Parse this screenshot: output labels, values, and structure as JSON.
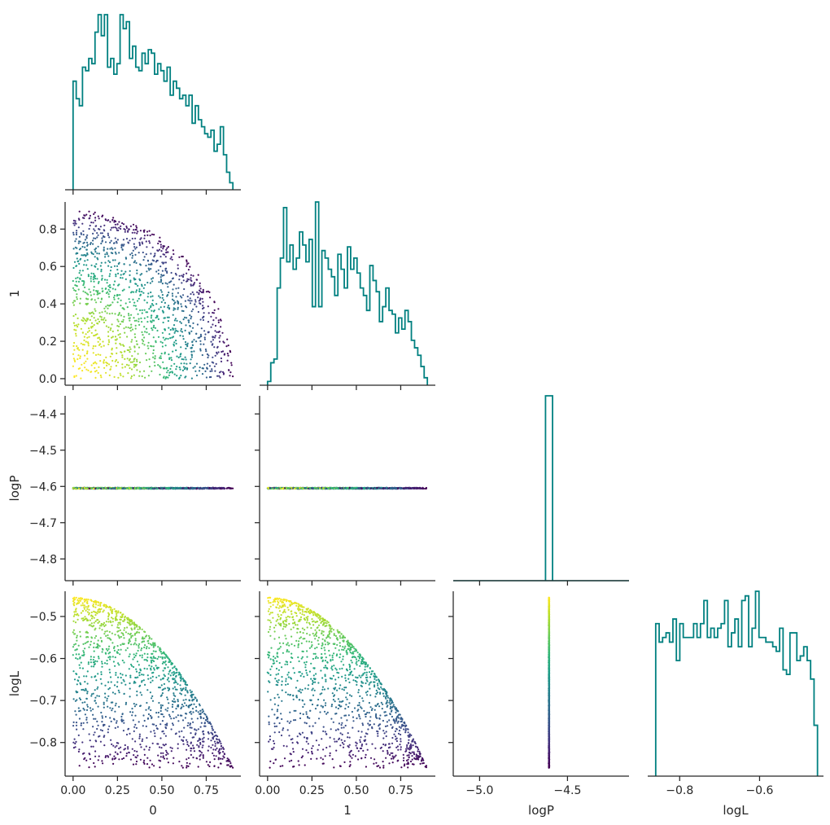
{
  "chart_data": {
    "type": "pairplot",
    "corner": true,
    "variables": [
      "0",
      "1",
      "logP",
      "logL"
    ],
    "colormap": "viridis",
    "color_by": "logL",
    "hist_color": "#008080",
    "axis_ranges": {
      "0": [
        -0.045,
        0.945
      ],
      "1": [
        -0.045,
        0.945
      ],
      "logP": [
        -5.15,
        -4.15
      ],
      "logL": [
        -0.88,
        -0.44
      ]
    },
    "y_ranges": {
      "1": [
        -0.035,
        0.945
      ],
      "logP": [
        -4.86,
        -4.35
      ],
      "logL": [
        -0.88,
        -0.44
      ]
    },
    "ticks": {
      "0": [
        0.0,
        0.25,
        0.5,
        0.75
      ],
      "1": [
        0.0,
        0.2,
        0.4,
        0.6,
        0.8
      ],
      "logP": [
        -4.8,
        -4.7,
        -4.6,
        -4.5,
        -4.4
      ],
      "logL": [
        -0.8,
        -0.7,
        -0.6,
        -0.5
      ]
    },
    "tick_labels": {
      "x0": [
        "0.00",
        "0.25",
        "0.50",
        "0.75"
      ],
      "x1": [
        "0.00",
        "0.25",
        "0.50",
        "0.75"
      ],
      "xlogP": [
        "−5.0",
        "−4.5"
      ],
      "xlogL": [
        "−0.8",
        "−0.6"
      ],
      "y1": [
        "0.0",
        "0.2",
        "0.4",
        "0.6",
        "0.8"
      ],
      "ylogP": [
        "−4.8",
        "−4.7",
        "−4.6",
        "−4.5",
        "−4.4"
      ],
      "ylogL": [
        "−0.8",
        "−0.7",
        "−0.6",
        "−0.5"
      ]
    },
    "xtick_values": {
      "logP": [
        -5.0,
        -4.5
      ],
      "logL": [
        -0.8,
        -0.6
      ]
    },
    "axis_labels": {
      "x": [
        "0",
        "1",
        "logP",
        "logL"
      ],
      "y": [
        "",
        "1",
        "logP",
        "logL"
      ]
    },
    "samples": {
      "count": 1400,
      "logP_constant": -4.605,
      "logL_formula": "logL = -0.455 - 0.5*(x0^2 + x1^2)",
      "support": "x0 >= 0, x1 >= 0, x0^2 + x1^2 <= 0.81"
    },
    "diag_hist": {
      "0": {
        "range": [
          0.0,
          0.9
        ],
        "counts": [
          0.62,
          0.52,
          0.48,
          0.7,
          0.68,
          0.75,
          0.72,
          0.9,
          1.0,
          0.88,
          1.0,
          0.7,
          0.75,
          0.66,
          0.72,
          1.0,
          0.92,
          0.96,
          0.75,
          0.82,
          0.7,
          0.68,
          0.78,
          0.72,
          0.8,
          0.78,
          0.66,
          0.72,
          0.68,
          0.62,
          0.7,
          0.54,
          0.62,
          0.58,
          0.52,
          0.54,
          0.48,
          0.54,
          0.38,
          0.48,
          0.4,
          0.36,
          0.32,
          0.3,
          0.34,
          0.22,
          0.26,
          0.36,
          0.2,
          0.1,
          0.04
        ]
      },
      "1": {
        "range": [
          0.0,
          0.9
        ],
        "counts": [
          0.02,
          0.12,
          0.14,
          0.52,
          0.68,
          0.95,
          0.66,
          0.75,
          0.62,
          0.68,
          0.82,
          0.75,
          0.66,
          0.78,
          0.42,
          0.98,
          0.42,
          0.72,
          0.68,
          0.62,
          0.58,
          0.48,
          0.7,
          0.62,
          0.52,
          0.74,
          0.62,
          0.68,
          0.6,
          0.52,
          0.48,
          0.4,
          0.64,
          0.56,
          0.5,
          0.34,
          0.42,
          0.52,
          0.4,
          0.38,
          0.28,
          0.36,
          0.3,
          0.4,
          0.34,
          0.24,
          0.2,
          0.16,
          0.1,
          0.04
        ]
      },
      "logP": {
        "range": [
          -4.625,
          -4.585
        ],
        "counts": [
          1.0
        ]
      },
      "logL": {
        "range": [
          -0.86,
          -0.455
        ],
        "counts": [
          0.66,
          0.58,
          0.6,
          0.62,
          0.58,
          0.68,
          0.5,
          0.66,
          0.6,
          0.6,
          0.6,
          0.66,
          0.6,
          0.66,
          0.76,
          0.6,
          0.64,
          0.6,
          0.64,
          0.66,
          0.76,
          0.56,
          0.62,
          0.68,
          0.56,
          0.76,
          0.78,
          0.56,
          0.64,
          0.8,
          0.6,
          0.6,
          0.58,
          0.58,
          0.56,
          0.54,
          0.64,
          0.46,
          0.44,
          0.62,
          0.62,
          0.5,
          0.52,
          0.56,
          0.5,
          0.42,
          0.22
        ]
      }
    }
  }
}
